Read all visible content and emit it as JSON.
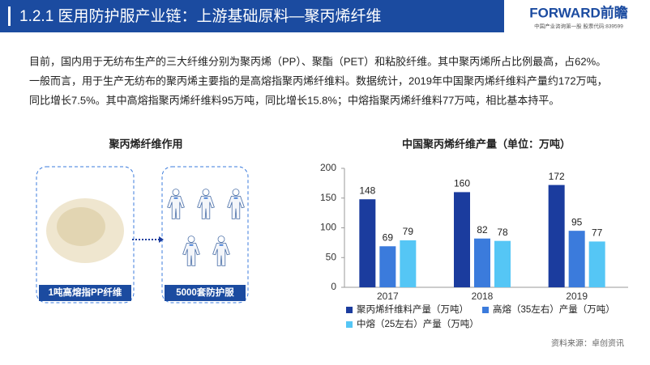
{
  "header": {
    "title": "1.2.1 医用防护服产业链：上游基础原料—聚丙烯纤维",
    "logo": "FORWARD前瞻",
    "logo_sub": "中国产业咨询第一股 股票代码:839599"
  },
  "paragraph": {
    "lines": [
      "目前，国内用于无纺布生产的三大纤维分别为聚丙烯（PP）、聚酯（PET）和粘胶纤维。其中聚丙烯所占比例最高，占62%。",
      "一般而言，用于生产无纺布的聚丙烯主要指的是高熔指聚丙烯纤维料。数据统计，2019年中国聚丙烯纤维料产量约172万吨，",
      "同比增长7.5%。其中高熔指聚丙烯纤维料95万吨，同比增长15.8%；中熔指聚丙烯纤维料77万吨，相比基本持平。"
    ]
  },
  "diagram": {
    "title": "聚丙烯纤维作用",
    "from": "1吨高熔指PP纤维",
    "to": "5000套防护服"
  },
  "chart_data": {
    "type": "bar",
    "title": "中国聚丙烯纤维产量（单位：万吨）",
    "categories": [
      "2017",
      "2018",
      "2019"
    ],
    "series": [
      {
        "name": "聚丙烯纤维料产量（万吨）",
        "color": "#1b3c9e",
        "values": [
          148,
          160,
          172
        ]
      },
      {
        "name": "高熔（35左右）产量（万吨）",
        "color": "#3b7bdc",
        "values": [
          69,
          82,
          95
        ]
      },
      {
        "name": "中熔（25左右）产量（万吨）",
        "color": "#55c6f5",
        "values": [
          79,
          78,
          77
        ]
      }
    ],
    "ylim": [
      0,
      200
    ],
    "yticks": [
      0,
      50,
      100,
      150,
      200
    ],
    "grid": false
  },
  "source": "资料来源：卓创资讯"
}
